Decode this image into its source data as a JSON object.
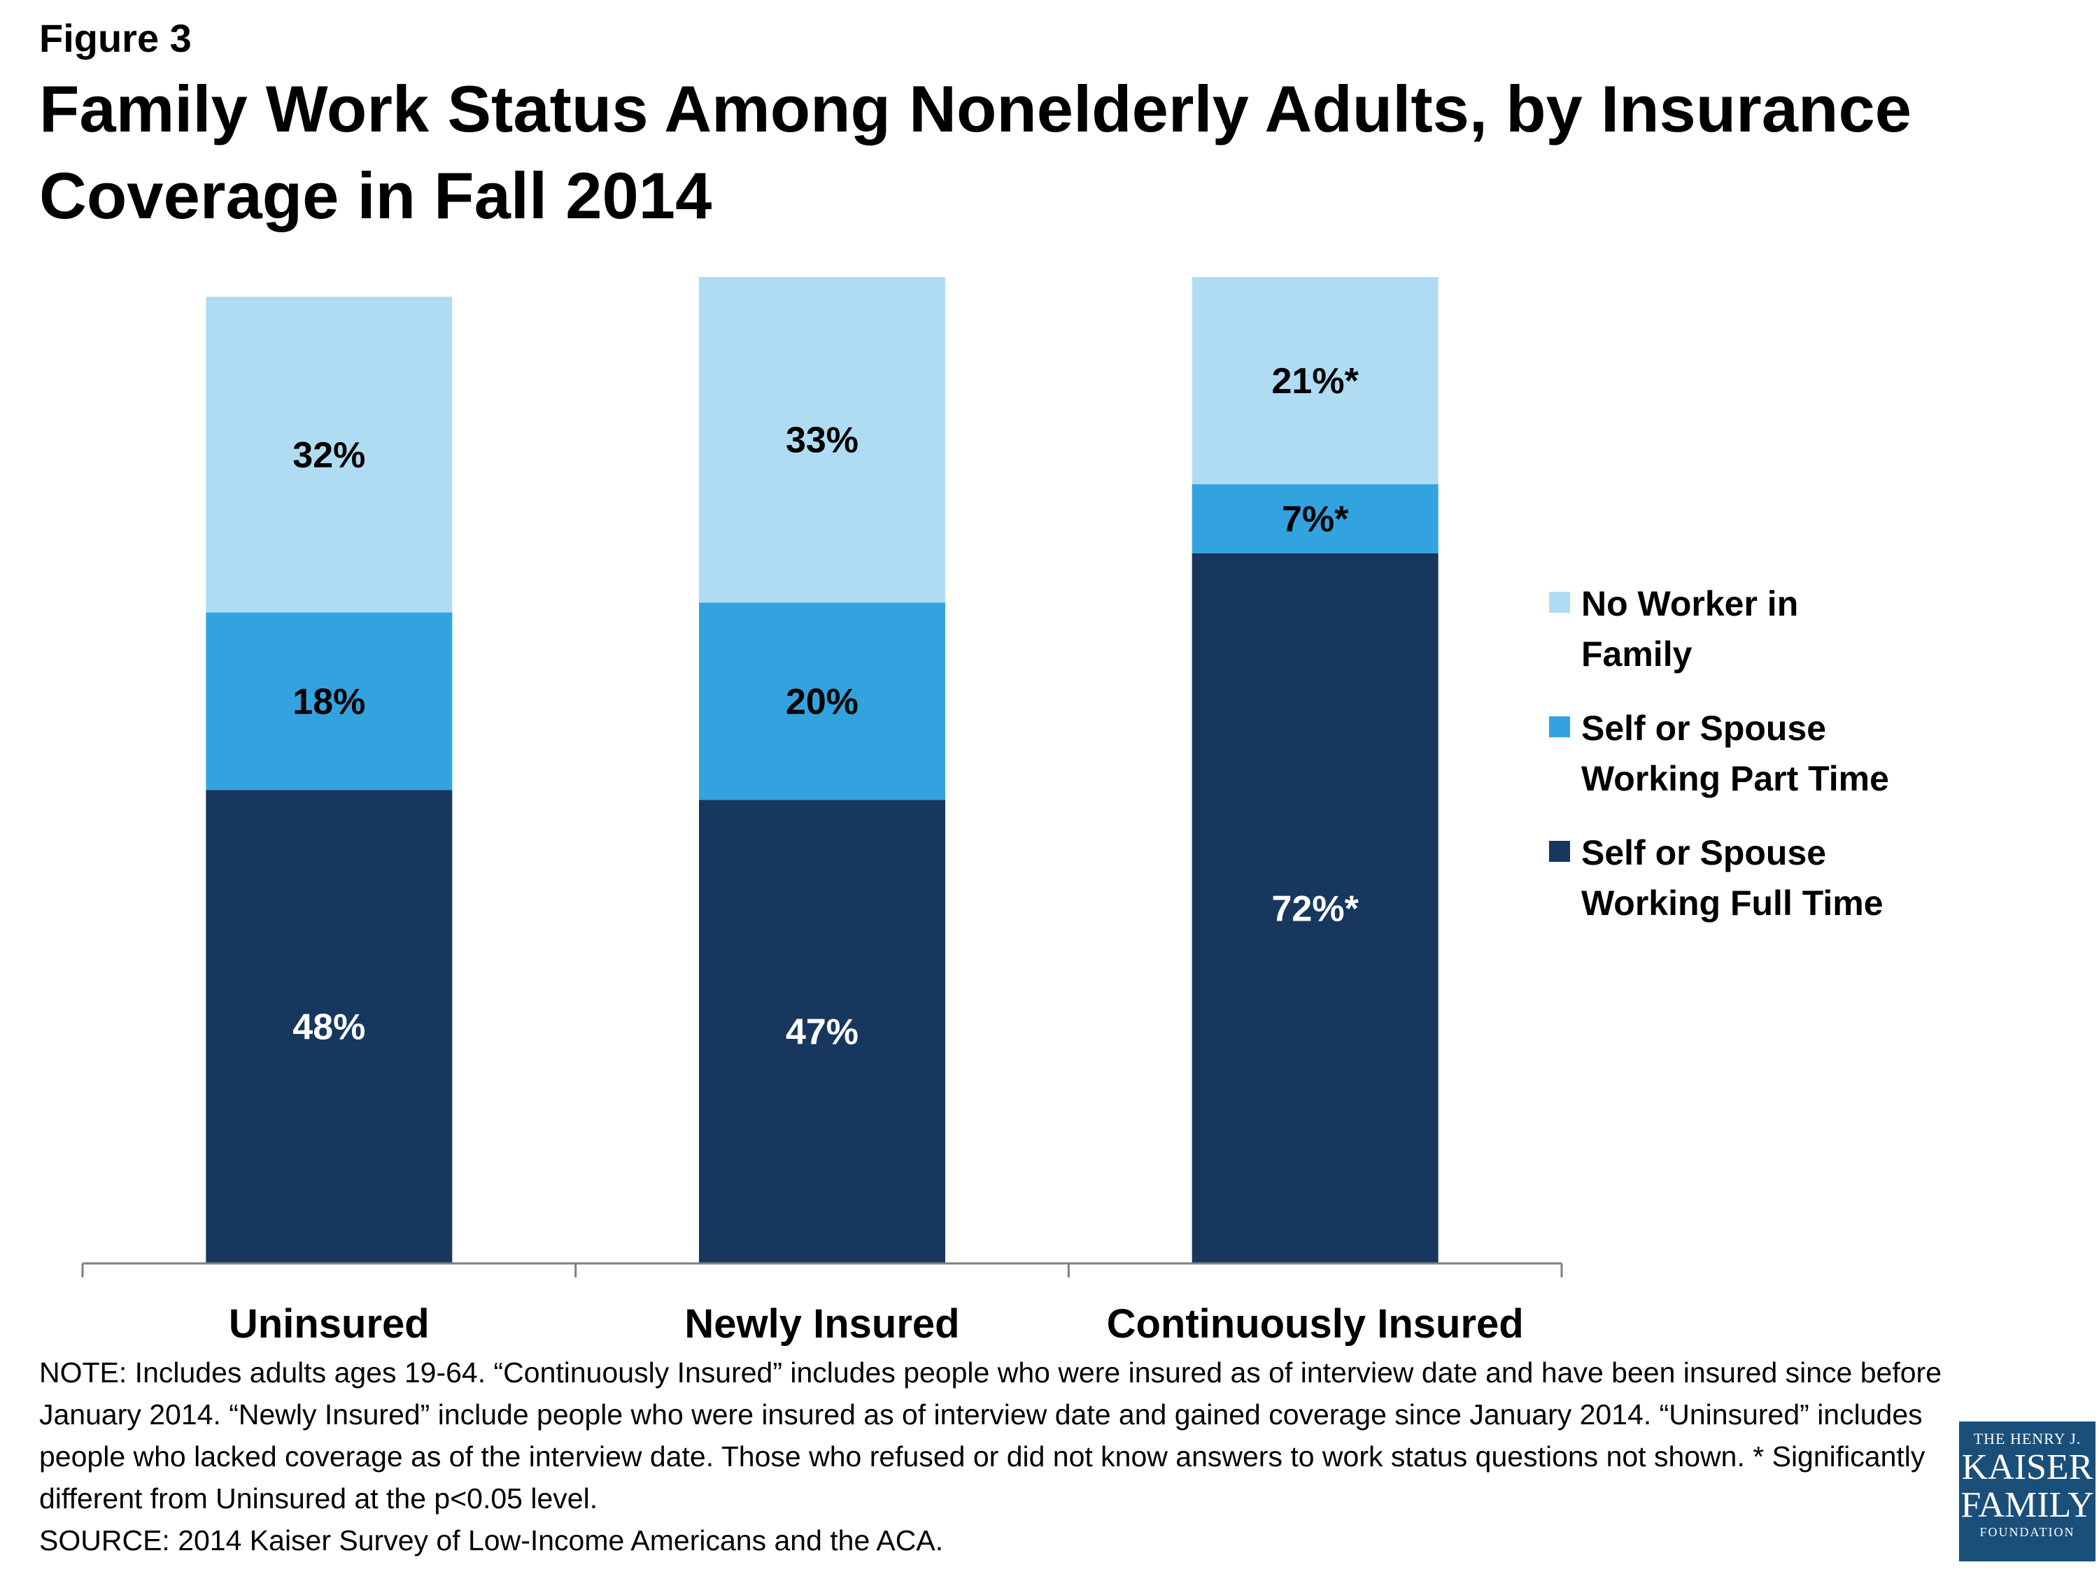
{
  "header": {
    "figure_label": "Figure 3",
    "title": "Family Work Status Among Nonelderly Adults, by Insurance Coverage in Fall 2014"
  },
  "chart_data": {
    "type": "bar",
    "stacked": true,
    "orientation": "vertical",
    "categories": [
      "Uninsured",
      "Newly Insured",
      "Continuously Insured"
    ],
    "series": [
      {
        "name": "Self or Spouse Working Full Time",
        "color": "#17375e",
        "values": [
          48,
          47,
          72
        ],
        "labels": [
          "48%",
          "47%",
          "72%*"
        ]
      },
      {
        "name": "Self or Spouse Working Part Time",
        "color": "#33a3e0",
        "values": [
          18,
          20,
          7
        ],
        "labels": [
          "18%",
          "20%",
          "7%*"
        ]
      },
      {
        "name": "No Worker in Family",
        "color": "#b0dcf3",
        "values": [
          32,
          33,
          21
        ],
        "labels": [
          "32%",
          "33%",
          "21%*"
        ]
      }
    ],
    "ylim": [
      0,
      100
    ],
    "grid": false,
    "legend_position": "right",
    "legend_order": [
      {
        "lines": [
          "No Worker in",
          "Family"
        ],
        "color": "#b0dcf3"
      },
      {
        "lines": [
          "Self or Spouse",
          "Working Part Time"
        ],
        "color": "#33a3e0"
      },
      {
        "lines": [
          "Self or Spouse",
          "Working Full Time"
        ],
        "color": "#17375e"
      }
    ]
  },
  "notes": {
    "note": "NOTE: Includes adults ages 19-64. “Continuously Insured” includes people who were insured as of interview date and have been insured since before January 2014. “Newly Insured” include people who were insured as of interview date and gained coverage since January 2014. “Uninsured” includes people who lacked coverage as of the interview date. Those who refused or did not know answers to work status questions not shown. * Significantly different from Uninsured at the p<0.05 level.",
    "source": "SOURCE: 2014 Kaiser Survey of Low-Income Americans and the ACA."
  },
  "logo": {
    "line1": "THE HENRY J.",
    "line2": "KAISER",
    "line3": "FAMILY",
    "line4": "FOUNDATION"
  }
}
